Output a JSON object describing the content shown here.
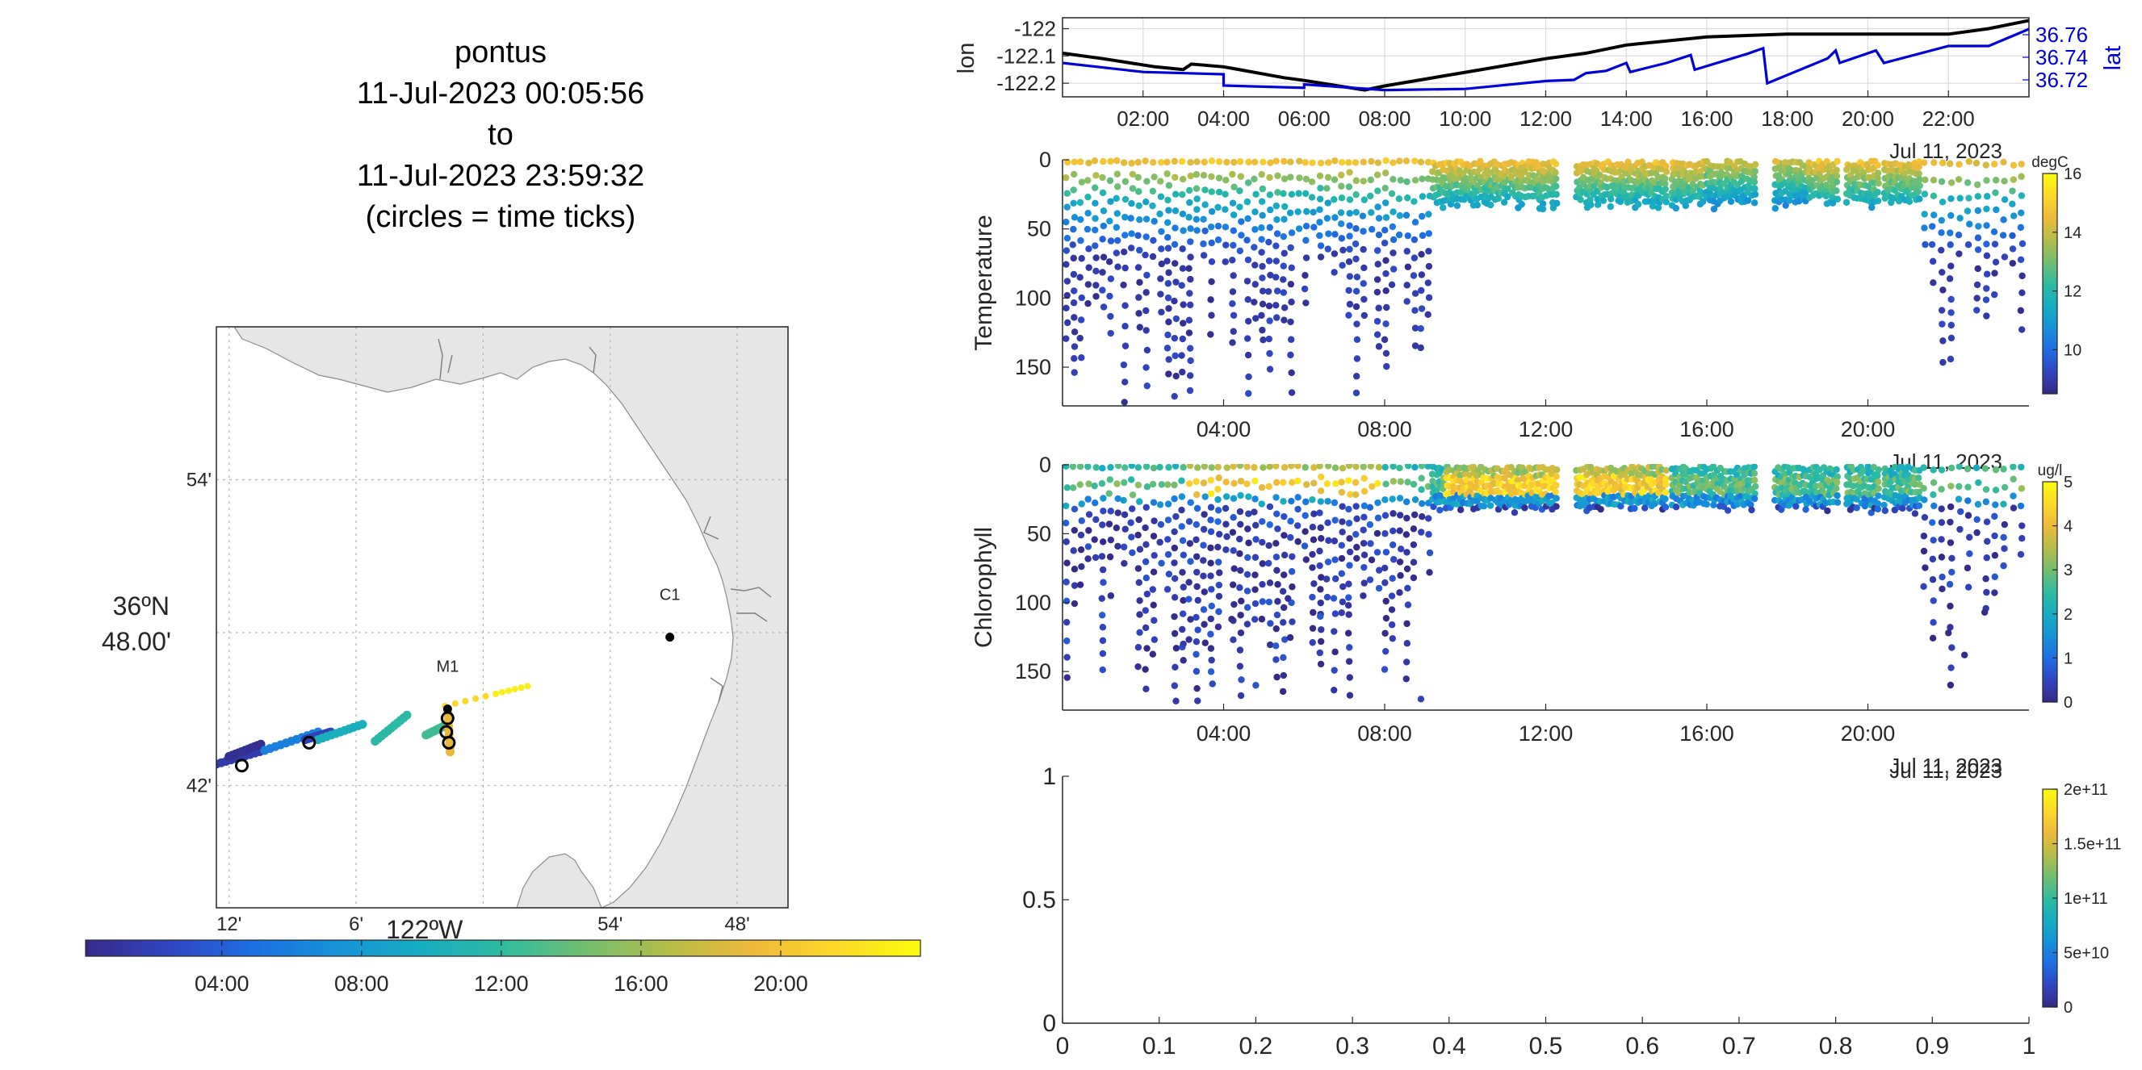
{
  "title": {
    "line1": "pontus",
    "line2": "11-Jul-2023 00:05:56",
    "line3": "to",
    "line4": "11-Jul-2023 23:59:32",
    "line5": "(circles = time ticks)"
  },
  "colors": {
    "parula": [
      "#352a87",
      "#3145c1",
      "#1d6ee3",
      "#1692d7",
      "#16acc3",
      "#2fbba0",
      "#73be6f",
      "#b6bd48",
      "#efb93a",
      "#fdd929",
      "#f9fb0e"
    ],
    "land": "#e6e6e6",
    "lat_series": "#0000d8",
    "lon_series": "#000000"
  },
  "chart_data": [
    {
      "id": "track-map",
      "type": "scatter",
      "xlabel": "122ºW",
      "ylabel": "36ºN 48.00'",
      "x_tick_labels": [
        "12'",
        "6'",
        "54'",
        "48'"
      ],
      "y_tick_labels": [
        "54'",
        "42'"
      ],
      "xlim": [
        -122.21,
        -121.76
      ],
      "ylim": [
        36.62,
        37.0
      ],
      "stations": [
        {
          "name": "C1",
          "lon": -121.853,
          "lat": 36.797
        },
        {
          "name": "M1",
          "lon": -122.028,
          "lat": 36.75
        }
      ],
      "time_ticks": [
        {
          "lon": -122.19,
          "lat": 36.713
        },
        {
          "lon": -122.137,
          "lat": 36.728
        },
        {
          "lon": -122.029,
          "lat": 36.735
        },
        {
          "lon": -122.028,
          "lat": 36.744
        },
        {
          "lon": -122.027,
          "lat": 36.728
        }
      ],
      "track_segments": [
        {
          "from": [
            -122.21,
            36.714
          ],
          "to": [
            -122.172,
            36.723
          ],
          "hour": 1.5
        },
        {
          "from": [
            -122.2,
            36.719
          ],
          "to": [
            -122.175,
            36.727
          ],
          "hour": 0.5
        },
        {
          "from": [
            -122.172,
            36.723
          ],
          "to": [
            -122.13,
            36.735
          ],
          "hour": 6
        },
        {
          "from": [
            -122.14,
            36.73
          ],
          "to": [
            -122.12,
            36.735
          ],
          "hour": 2
        },
        {
          "from": [
            -122.13,
            36.73
          ],
          "to": [
            -122.095,
            36.74
          ],
          "hour": 10
        },
        {
          "from": [
            -122.085,
            36.729
          ],
          "to": [
            -122.06,
            36.746
          ],
          "hour": 11.5
        },
        {
          "from": [
            -122.045,
            36.733
          ],
          "to": [
            -122.028,
            36.74
          ],
          "hour": 12.5
        },
        {
          "from": [
            -122.028,
            36.75
          ],
          "to": [
            -122.026,
            36.722
          ],
          "hour": 19
        },
        {
          "from": [
            -122.03,
            36.752
          ],
          "to": [
            -121.99,
            36.76
          ],
          "hour": 21.5
        },
        {
          "from": [
            -121.99,
            36.76
          ],
          "to": [
            -121.965,
            36.765
          ],
          "hour": 23
        }
      ]
    },
    {
      "id": "time-colorbar",
      "type": "colorbar",
      "tick_labels": [
        "04:00",
        "08:00",
        "12:00",
        "16:00",
        "20:00"
      ],
      "tick_hours": [
        4,
        8,
        12,
        16,
        20
      ],
      "range_hours": [
        0.1,
        24
      ]
    },
    {
      "id": "position",
      "type": "line",
      "xlim": [
        0,
        24
      ],
      "x_tick_labels": [
        "02:00",
        "04:00",
        "06:00",
        "08:00",
        "10:00",
        "12:00",
        "14:00",
        "16:00",
        "18:00",
        "20:00",
        "22:00"
      ],
      "x_tick_hours": [
        2,
        4,
        6,
        8,
        10,
        12,
        14,
        16,
        18,
        20,
        22
      ],
      "date_label": "Jul 11, 2023",
      "left_axis": {
        "label": "lon",
        "ylim": [
          -122.25,
          -121.96
        ],
        "tick_labels": [
          "-122",
          "-122.1",
          "-122.2"
        ],
        "ticks": [
          -122,
          -122.1,
          -122.2
        ]
      },
      "right_axis": {
        "label": "lat",
        "ylim": [
          36.705,
          36.775
        ],
        "tick_labels": [
          "36.76",
          "36.74",
          "36.72"
        ],
        "ticks": [
          36.76,
          36.74,
          36.72
        ]
      },
      "series": [
        {
          "axis": "left",
          "points": [
            [
              0,
              -122.09
            ],
            [
              1,
              -122.11
            ],
            [
              2.3,
              -122.14
            ],
            [
              3,
              -122.15
            ],
            [
              3.2,
              -122.13
            ],
            [
              4,
              -122.14
            ],
            [
              5.5,
              -122.18
            ],
            [
              6,
              -122.19
            ],
            [
              7.5,
              -122.225
            ],
            [
              8,
              -122.21
            ],
            [
              10,
              -122.16
            ],
            [
              12,
              -122.11
            ],
            [
              13,
              -122.09
            ],
            [
              14,
              -122.06
            ],
            [
              16,
              -122.03
            ],
            [
              18,
              -122.02
            ],
            [
              20,
              -122.02
            ],
            [
              22,
              -122.02
            ],
            [
              23,
              -122.0
            ],
            [
              24,
              -121.97
            ]
          ]
        },
        {
          "axis": "right",
          "points": [
            [
              0,
              36.735
            ],
            [
              2,
              36.727
            ],
            [
              4,
              36.725
            ],
            [
              4,
              36.715
            ],
            [
              6,
              36.713
            ],
            [
              6,
              36.716
            ],
            [
              8,
              36.711
            ],
            [
              10,
              36.712
            ],
            [
              12,
              36.719
            ],
            [
              12.7,
              36.72
            ],
            [
              13,
              36.726
            ],
            [
              13.5,
              36.728
            ],
            [
              14,
              36.735
            ],
            [
              14.1,
              36.727
            ],
            [
              15,
              36.735
            ],
            [
              15.6,
              36.742
            ],
            [
              15.7,
              36.729
            ],
            [
              17,
              36.743
            ],
            [
              17.4,
              36.748
            ],
            [
              17.5,
              36.717
            ],
            [
              19,
              36.739
            ],
            [
              19.2,
              36.746
            ],
            [
              19.3,
              36.735
            ],
            [
              20.2,
              36.746
            ],
            [
              20.4,
              36.735
            ],
            [
              22,
              36.75
            ],
            [
              23,
              36.75
            ],
            [
              24,
              36.765
            ]
          ]
        }
      ]
    },
    {
      "id": "temperature",
      "type": "scatter",
      "ylabel": "Temperature",
      "units": "degC",
      "xlim": [
        0,
        24
      ],
      "ylim": [
        178,
        0
      ],
      "y_tick_labels": [
        "0",
        "50",
        "100",
        "150"
      ],
      "y_ticks": [
        0,
        50,
        100,
        150
      ],
      "x_tick_labels": [
        "04:00",
        "08:00",
        "12:00",
        "16:00",
        "20:00"
      ],
      "x_tick_hours": [
        4,
        8,
        12,
        16,
        20
      ],
      "date_label": "Jul 11, 2023",
      "colorbar": {
        "range": [
          8.5,
          16
        ],
        "tick_labels": [
          "16",
          "14",
          "12",
          "10"
        ],
        "ticks": [
          16,
          14,
          12,
          10
        ]
      },
      "profiles": {
        "deep_phase_hours": [
          0,
          9.1
        ],
        "deep_phase_depth_max": 175,
        "shallow_phase_hours": [
          9.1,
          21.3
        ],
        "shallow_phase_depth_max": 35,
        "late_deep_hours": [
          21.3,
          24
        ],
        "surface_value": 14.8,
        "value_at_30m": 11.5,
        "deep_value": 9.0
      }
    },
    {
      "id": "chlorophyll",
      "type": "scatter",
      "ylabel": "Chlorophyll",
      "units": "ug/l",
      "xlim": [
        0,
        24
      ],
      "ylim": [
        178,
        0
      ],
      "y_tick_labels": [
        "0",
        "50",
        "100",
        "150"
      ],
      "y_ticks": [
        0,
        50,
        100,
        150
      ],
      "x_tick_labels": [
        "04:00",
        "08:00",
        "12:00",
        "16:00",
        "20:00"
      ],
      "x_tick_hours": [
        4,
        8,
        12,
        16,
        20
      ],
      "date_label": "Jul 11, 2023",
      "colorbar": {
        "range": [
          0,
          5
        ],
        "tick_labels": [
          "5",
          "4",
          "3",
          "2",
          "1",
          "0"
        ],
        "ticks": [
          5,
          4,
          3,
          2,
          1,
          0
        ]
      },
      "outliers": [
        [
          1.2,
          95
        ],
        [
          3,
          130
        ],
        [
          4.2,
          112
        ],
        [
          4.8,
          160
        ],
        [
          5.6,
          97
        ],
        [
          6.4,
          110
        ],
        [
          7.1,
          102
        ],
        [
          8.9,
          170
        ],
        [
          22,
          122
        ],
        [
          22.4,
          138
        ],
        [
          22.9,
          107
        ]
      ],
      "profiles": {
        "deep_phase_hours": [
          0,
          9.1
        ],
        "shallow_phase_hours": [
          9.1,
          21.3
        ],
        "late_deep_hours": [
          21.3,
          24
        ]
      }
    },
    {
      "id": "empty-panel",
      "type": "scatter",
      "xlim": [
        0,
        1
      ],
      "ylim": [
        0,
        1
      ],
      "x_tick_labels": [
        "0",
        "0.1",
        "0.2",
        "0.3",
        "0.4",
        "0.5",
        "0.6",
        "0.7",
        "0.8",
        "0.9",
        "1"
      ],
      "y_tick_labels": [
        "0",
        "0.5",
        "1"
      ],
      "date_label": "Jul 11, 2023",
      "colorbar": {
        "range": [
          0,
          200000000000.0
        ],
        "tick_labels": [
          "2e+11",
          "1.5e+11",
          "1e+11",
          "5e+10",
          "0"
        ],
        "ticks": [
          200000000000.0,
          150000000000.0,
          100000000000.0,
          50000000000.0,
          0
        ]
      }
    }
  ]
}
